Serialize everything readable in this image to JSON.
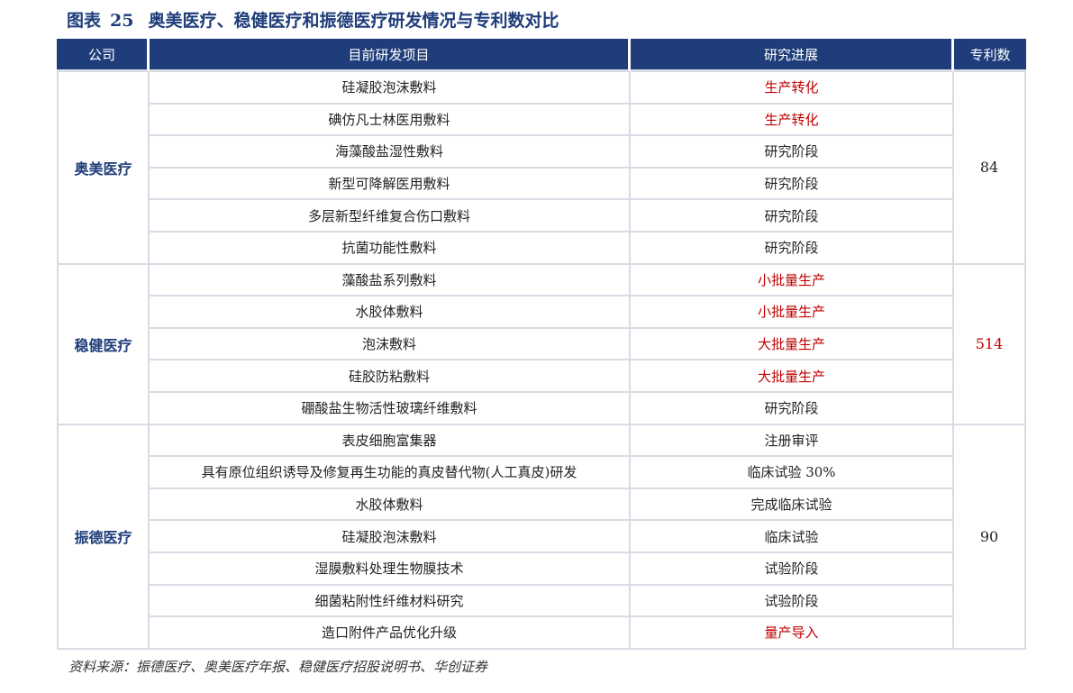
{
  "title": {
    "label": "图表",
    "number": "25",
    "text": "奥美医疗、稳健医疗和振德医疗研发情况与专利数对比"
  },
  "table": {
    "headers": [
      "公司",
      "目前研发项目",
      "研究进展",
      "专利数"
    ],
    "groups": [
      {
        "company": "奥美医疗",
        "patents": "84",
        "patents_highlight": false,
        "rows": [
          {
            "project": "硅凝胶泡沫敷料",
            "progress": "生产转化",
            "highlight": true
          },
          {
            "project": "碘仿凡士林医用敷料",
            "progress": "生产转化",
            "highlight": true
          },
          {
            "project": "海藻酸盐湿性敷料",
            "progress": "研究阶段",
            "highlight": false
          },
          {
            "project": "新型可降解医用敷料",
            "progress": "研究阶段",
            "highlight": false
          },
          {
            "project": "多层新型纤维复合伤口敷料",
            "progress": "研究阶段",
            "highlight": false
          },
          {
            "project": "抗菌功能性敷料",
            "progress": "研究阶段",
            "highlight": false
          }
        ]
      },
      {
        "company": "稳健医疗",
        "patents": "514",
        "patents_highlight": true,
        "rows": [
          {
            "project": "藻酸盐系列敷料",
            "progress": "小批量生产",
            "highlight": true
          },
          {
            "project": "水胶体敷料",
            "progress": "小批量生产",
            "highlight": true
          },
          {
            "project": "泡沫敷料",
            "progress": "大批量生产",
            "highlight": true
          },
          {
            "project": "硅胶防粘敷料",
            "progress": "大批量生产",
            "highlight": true
          },
          {
            "project": "硼酸盐生物活性玻璃纤维敷料",
            "progress": "研究阶段",
            "highlight": false
          }
        ]
      },
      {
        "company": "振德医疗",
        "patents": "90",
        "patents_highlight": false,
        "rows": [
          {
            "project": "表皮细胞富集器",
            "progress": "注册审评",
            "highlight": false
          },
          {
            "project": "具有原位组织诱导及修复再生功能的真皮替代物(人工真皮)研发",
            "progress": "临床试验 30%",
            "highlight": false
          },
          {
            "project": "水胶体敷料",
            "progress": "完成临床试验",
            "highlight": false
          },
          {
            "project": "硅凝胶泡沫敷料",
            "progress": "临床试验",
            "highlight": false
          },
          {
            "project": "湿膜敷料处理生物膜技术",
            "progress": "试验阶段",
            "highlight": false
          },
          {
            "project": "细菌粘附性纤维材料研究",
            "progress": "试验阶段",
            "highlight": false
          },
          {
            "project": "造口附件产品优化升级",
            "progress": "量产导入",
            "highlight": true
          }
        ]
      }
    ]
  },
  "source": "资料来源：振德医疗、奥美医疗年报、稳健医疗招股说明书、华创证券",
  "colors": {
    "header_bg": "#1f3d7a",
    "title": "#1f3d7a",
    "highlight": "#c00000",
    "grid": "#d8dbe3"
  }
}
